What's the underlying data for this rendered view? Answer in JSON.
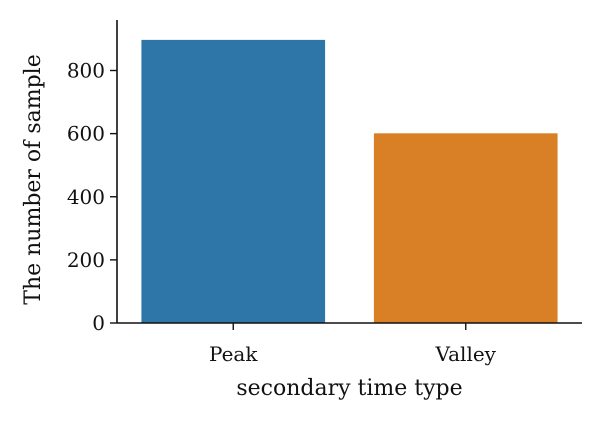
{
  "chart_data": {
    "type": "bar",
    "categories": [
      "Peak",
      "Valley"
    ],
    "values": [
      897,
      601
    ],
    "colors": [
      "#2e75a8",
      "#d98026"
    ],
    "xlabel": "secondary time type",
    "ylabel": "The number of sample",
    "ylim": [
      0,
      960
    ],
    "yticks": [
      0,
      200,
      400,
      600,
      800
    ],
    "grid": false
  }
}
